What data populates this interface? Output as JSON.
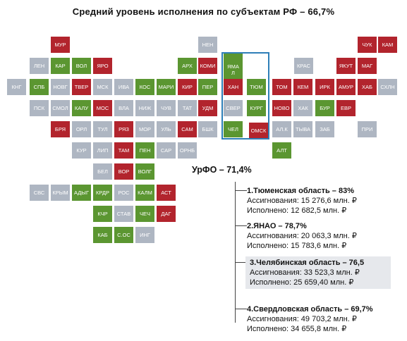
{
  "title": "Средний уровень исполнения по субъектам РФ – 66,7%",
  "colors": {
    "green": "#5b9631",
    "red": "#b2242d",
    "gray": "#aeb6c2",
    "border": "#2e7fb8"
  },
  "regions": [
    {
      "label": "НЕН",
      "color": "s"
    },
    {
      "label": "ЧУК",
      "color": "r"
    },
    {
      "label": "КАМ",
      "color": "r"
    },
    {
      "label": "МУР",
      "color": "r"
    },
    {
      "label": "ЯМАЛ",
      "color": "g"
    },
    {
      "label": "ЛЕН",
      "color": "s"
    },
    {
      "label": "КАР",
      "color": "g"
    },
    {
      "label": "ВОЛ",
      "color": "g"
    },
    {
      "label": "ЯРО",
      "color": "r"
    },
    {
      "label": "АРХ",
      "color": "g"
    },
    {
      "label": "КОМИ",
      "color": "r"
    },
    {
      "label": "КРАС",
      "color": "s"
    },
    {
      "label": "ЯКУТ",
      "color": "r"
    },
    {
      "label": "МАГ",
      "color": "r"
    },
    {
      "label": "КНГ",
      "color": "s"
    },
    {
      "label": "СПБ",
      "color": "g"
    },
    {
      "label": "НОВГ",
      "color": "s"
    },
    {
      "label": "ТВЕР",
      "color": "r"
    },
    {
      "label": "МСК",
      "color": "s"
    },
    {
      "label": "ИВА",
      "color": "s"
    },
    {
      "label": "КОС",
      "color": "g"
    },
    {
      "label": "МАРИ",
      "color": "g"
    },
    {
      "label": "КИР",
      "color": "r"
    },
    {
      "label": "ПЕР",
      "color": "g"
    },
    {
      "label": "ХАН",
      "color": "r"
    },
    {
      "label": "ТЮМ",
      "color": "g"
    },
    {
      "label": "ТОМ",
      "color": "r"
    },
    {
      "label": "КЕМ",
      "color": "r"
    },
    {
      "label": "ИРК",
      "color": "r"
    },
    {
      "label": "АМУР",
      "color": "r"
    },
    {
      "label": "ХАБ",
      "color": "r"
    },
    {
      "label": "СХЛН",
      "color": "s"
    },
    {
      "label": "ПСК",
      "color": "s"
    },
    {
      "label": "СМОЛ",
      "color": "s"
    },
    {
      "label": "КАЛУ",
      "color": "g"
    },
    {
      "label": "МОС",
      "color": "r"
    },
    {
      "label": "ВЛА",
      "color": "s"
    },
    {
      "label": "НИЖ",
      "color": "s"
    },
    {
      "label": "ЧУВ",
      "color": "s"
    },
    {
      "label": "ТАТ",
      "color": "s"
    },
    {
      "label": "УДМ",
      "color": "r"
    },
    {
      "label": "СВЕР",
      "color": "s"
    },
    {
      "label": "КУРГ",
      "color": "g"
    },
    {
      "label": "НОВО",
      "color": "r"
    },
    {
      "label": "ХАК",
      "color": "s"
    },
    {
      "label": "БУР",
      "color": "g"
    },
    {
      "label": "ЕВР",
      "color": "r"
    },
    {
      "label": "БРЯ",
      "color": "r"
    },
    {
      "label": "ОРЛ",
      "color": "s"
    },
    {
      "label": "ТУЛ",
      "color": "s"
    },
    {
      "label": "РЯЗ",
      "color": "r"
    },
    {
      "label": "МОР",
      "color": "s"
    },
    {
      "label": "УЛЬ",
      "color": "s"
    },
    {
      "label": "САМ",
      "color": "r"
    },
    {
      "label": "БШК",
      "color": "s"
    },
    {
      "label": "ЧЕЛ",
      "color": "g"
    },
    {
      "label": "ОМСК",
      "color": "r"
    },
    {
      "label": "АЛ.К",
      "color": "s"
    },
    {
      "label": "ТЫВА",
      "color": "s"
    },
    {
      "label": "ЗАБ",
      "color": "s"
    },
    {
      "label": "ПРИ",
      "color": "s"
    },
    {
      "label": "КУР",
      "color": "s"
    },
    {
      "label": "ЛИП",
      "color": "s"
    },
    {
      "label": "ТАМ",
      "color": "r"
    },
    {
      "label": "ПЕН",
      "color": "g"
    },
    {
      "label": "САР",
      "color": "s"
    },
    {
      "label": "ОРНБ",
      "color": "s"
    },
    {
      "label": "АЛТ",
      "color": "g"
    },
    {
      "label": "БЕЛ",
      "color": "s"
    },
    {
      "label": "ВОР",
      "color": "r"
    },
    {
      "label": "ВОЛГ",
      "color": "g"
    },
    {
      "label": "СВС",
      "color": "s"
    },
    {
      "label": "КРЫМ",
      "color": "s"
    },
    {
      "label": "АДЫГ",
      "color": "g"
    },
    {
      "label": "КРДР",
      "color": "g"
    },
    {
      "label": "РОС",
      "color": "s"
    },
    {
      "label": "КАЛМ",
      "color": "g"
    },
    {
      "label": "АСТ",
      "color": "r"
    },
    {
      "label": "КЧР",
      "color": "g"
    },
    {
      "label": "СТАВ",
      "color": "s"
    },
    {
      "label": "ЧЕЧ",
      "color": "g"
    },
    {
      "label": "ДАГ",
      "color": "r"
    },
    {
      "label": "КАБ",
      "color": "g"
    },
    {
      "label": "С.ОС",
      "color": "g"
    },
    {
      "label": "ИНГ",
      "color": "s"
    }
  ],
  "urfo": {
    "title": "УрФО – 71,4%",
    "items": [
      {
        "title": "1.Тюменская область – 83%",
        "line1": "Ассигнования: 15 276,6 млн. ₽",
        "line2": "Исполнено: 12 682,5 млн. ₽"
      },
      {
        "title": "2.ЯНАО – 78,7%",
        "line1": "Ассигнования: 20 063,3 млн. ₽",
        "line2": "Исполнено: 15 783,6 млн. ₽"
      },
      {
        "title": "3.Челябинская область – 76,5",
        "line1": "Ассигнования: 33 523,3 млн. ₽",
        "line2": "Исполнено: 25 659,40 млн. ₽"
      },
      {
        "title": "4.Свердловская область – 69,7%",
        "line1": "Ассигнования: 49 703,2 млн. ₽",
        "line2": "Исполнено: 34 655,8 млн. ₽"
      }
    ]
  }
}
